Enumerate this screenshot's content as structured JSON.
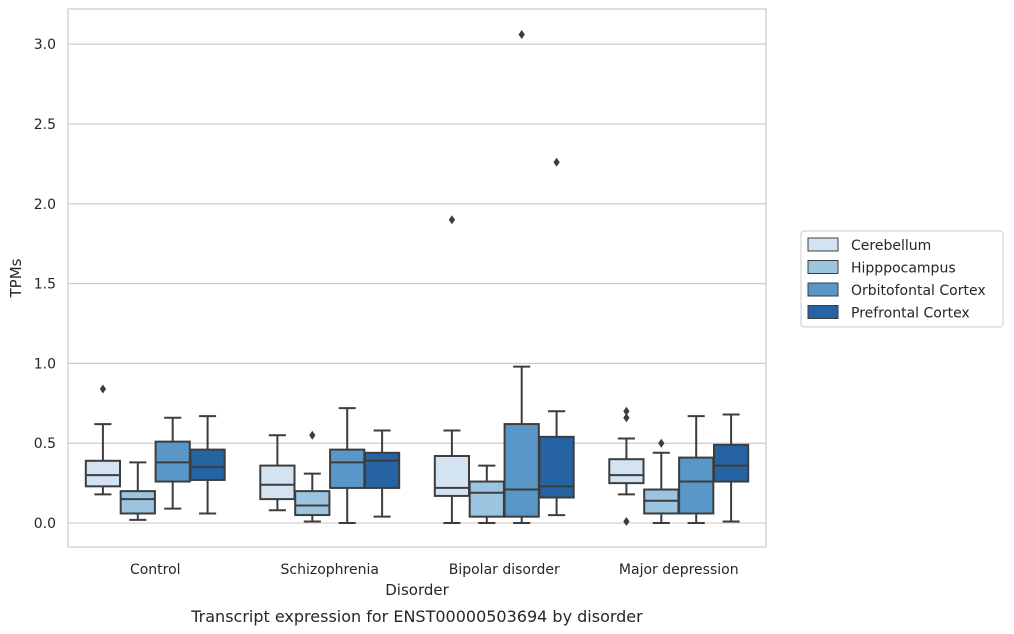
{
  "chart_data": {
    "type": "box",
    "title": "",
    "caption": "Transcript expression for ENST00000503694 by disorder",
    "xlabel": "Disorder",
    "ylabel": "TPMs",
    "ylim": [
      -0.15,
      3.22
    ],
    "yticks": [
      "0.0",
      "0.5",
      "1.0",
      "1.5",
      "2.0",
      "2.5",
      "3.0"
    ],
    "grid": true,
    "legend_position": "right",
    "categories": [
      "Control",
      "Schizophrenia",
      "Bipolar disorder",
      "Major depression"
    ],
    "series": [
      {
        "name": "Cerebellum",
        "color": "#d4e3f2",
        "boxes": [
          {
            "whislo": 0.18,
            "q1": 0.23,
            "med": 0.3,
            "q3": 0.39,
            "whishi": 0.62,
            "fliers": [
              0.84
            ]
          },
          {
            "whislo": 0.08,
            "q1": 0.15,
            "med": 0.24,
            "q3": 0.36,
            "whishi": 0.55,
            "fliers": []
          },
          {
            "whislo": 0.0,
            "q1": 0.17,
            "med": 0.22,
            "q3": 0.42,
            "whishi": 0.58,
            "fliers": [
              1.9
            ]
          },
          {
            "whislo": 0.18,
            "q1": 0.25,
            "med": 0.3,
            "q3": 0.4,
            "whishi": 0.53,
            "fliers": [
              0.66,
              0.7,
              0.01
            ]
          }
        ]
      },
      {
        "name": "Hipppocampus",
        "color": "#9ac4e0",
        "boxes": [
          {
            "whislo": 0.02,
            "q1": 0.06,
            "med": 0.15,
            "q3": 0.2,
            "whishi": 0.38,
            "fliers": []
          },
          {
            "whislo": 0.01,
            "q1": 0.05,
            "med": 0.11,
            "q3": 0.2,
            "whishi": 0.31,
            "fliers": [
              0.55
            ]
          },
          {
            "whislo": 0.0,
            "q1": 0.04,
            "med": 0.19,
            "q3": 0.26,
            "whishi": 0.36,
            "fliers": []
          },
          {
            "whislo": 0.0,
            "q1": 0.06,
            "med": 0.14,
            "q3": 0.21,
            "whishi": 0.44,
            "fliers": [
              0.5
            ]
          }
        ]
      },
      {
        "name": "Orbitofontal Cortex",
        "color": "#5897c7",
        "boxes": [
          {
            "whislo": 0.09,
            "q1": 0.26,
            "med": 0.38,
            "q3": 0.51,
            "whishi": 0.66,
            "fliers": []
          },
          {
            "whislo": 0.0,
            "q1": 0.22,
            "med": 0.38,
            "q3": 0.46,
            "whishi": 0.72,
            "fliers": []
          },
          {
            "whislo": 0.0,
            "q1": 0.04,
            "med": 0.21,
            "q3": 0.62,
            "whishi": 0.98,
            "fliers": [
              3.06
            ]
          },
          {
            "whislo": 0.0,
            "q1": 0.06,
            "med": 0.26,
            "q3": 0.41,
            "whishi": 0.67,
            "fliers": []
          }
        ]
      },
      {
        "name": "Prefrontal Cortex",
        "color": "#2563a3",
        "boxes": [
          {
            "whislo": 0.06,
            "q1": 0.27,
            "med": 0.35,
            "q3": 0.46,
            "whishi": 0.67,
            "fliers": []
          },
          {
            "whislo": 0.04,
            "q1": 0.22,
            "med": 0.39,
            "q3": 0.44,
            "whishi": 0.58,
            "fliers": []
          },
          {
            "whislo": 0.05,
            "q1": 0.16,
            "med": 0.23,
            "q3": 0.54,
            "whishi": 0.7,
            "fliers": [
              2.26
            ]
          },
          {
            "whislo": 0.01,
            "q1": 0.26,
            "med": 0.36,
            "q3": 0.49,
            "whishi": 0.68,
            "fliers": []
          }
        ]
      }
    ]
  }
}
